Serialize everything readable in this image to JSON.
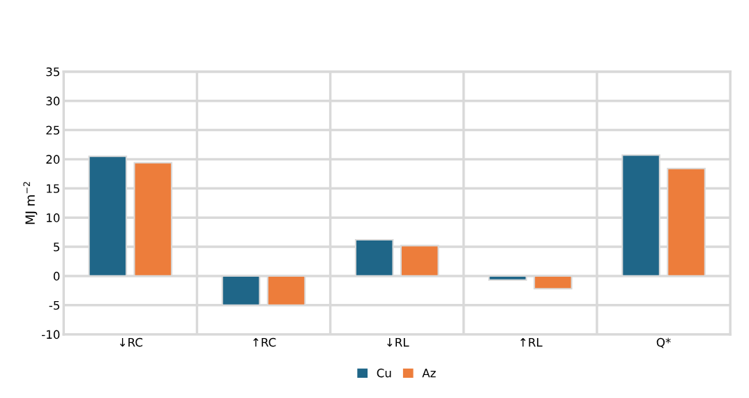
{
  "chart_data": {
    "type": "bar",
    "ylabel": "MJ m$^{−2}$",
    "categories": [
      "↓RC",
      "↑RC",
      "↓RL",
      "↑RL",
      "Q*"
    ],
    "series": [
      {
        "name": "Cu",
        "color": "#1f6688",
        "values": [
          20.5,
          -5,
          6.2,
          -0.7,
          20.7
        ]
      },
      {
        "name": "Az",
        "color": "#ed7d3b",
        "values": [
          19.4,
          -5,
          5.2,
          -2.2,
          18.4
        ]
      }
    ],
    "ylim": [
      -10,
      35
    ],
    "yticks": [
      -10,
      -5,
      0,
      5,
      10,
      15,
      20,
      25,
      30,
      35
    ],
    "grid": true,
    "legend": "bottom"
  }
}
